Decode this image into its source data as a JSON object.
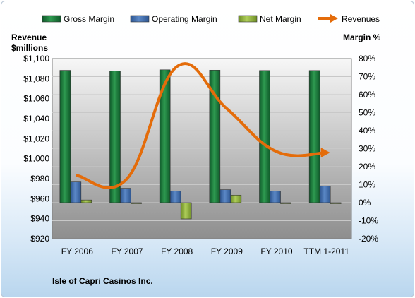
{
  "chart_data": {
    "type": "bar+line",
    "footer_title": "Isle of Capri Casinos Inc.",
    "left_axis": {
      "title_line1": "Revenue",
      "title_line2": "$millions",
      "min": 920,
      "max": 1100,
      "step": 20,
      "tick_labels": [
        "$920",
        "$940",
        "$960",
        "$980",
        "$1,000",
        "$1,020",
        "$1,040",
        "$1,060",
        "$1,080",
        "$1,100"
      ]
    },
    "right_axis": {
      "title": "Margin  %",
      "min": -20,
      "max": 80,
      "step": 10,
      "tick_labels": [
        "-20%",
        "-10%",
        "0%",
        "10%",
        "20%",
        "30%",
        "40%",
        "50%",
        "60%",
        "70%",
        "80%"
      ]
    },
    "categories": [
      "FY 2006",
      "FY 2007",
      "FY 2008",
      "FY 2009",
      "FY 2010",
      "TTM 1-2011"
    ],
    "legend": [
      "Gross Margin",
      "Operating Margin",
      "Net Margin",
      "Revenues"
    ],
    "colors": {
      "gross": "#1a7a3c",
      "operating": "#3f6fae",
      "net": "#8fb13f",
      "revenues": "#e46c0a"
    },
    "series": [
      {
        "name": "Gross Margin",
        "axis": "right",
        "values": [
          73.5,
          73.2,
          73.8,
          73.6,
          73.4,
          73.4
        ]
      },
      {
        "name": "Operating Margin",
        "axis": "right",
        "values": [
          11.5,
          8.0,
          6.5,
          7.2,
          6.5,
          9.3
        ]
      },
      {
        "name": "Net Margin",
        "axis": "right",
        "values": [
          1.5,
          -0.3,
          -9.0,
          4.2,
          -0.3,
          -0.2
        ]
      },
      {
        "name": "Revenues",
        "axis": "left",
        "type": "line",
        "values": [
          983,
          980,
          1092,
          1050,
          1007,
          1006
        ]
      }
    ]
  }
}
